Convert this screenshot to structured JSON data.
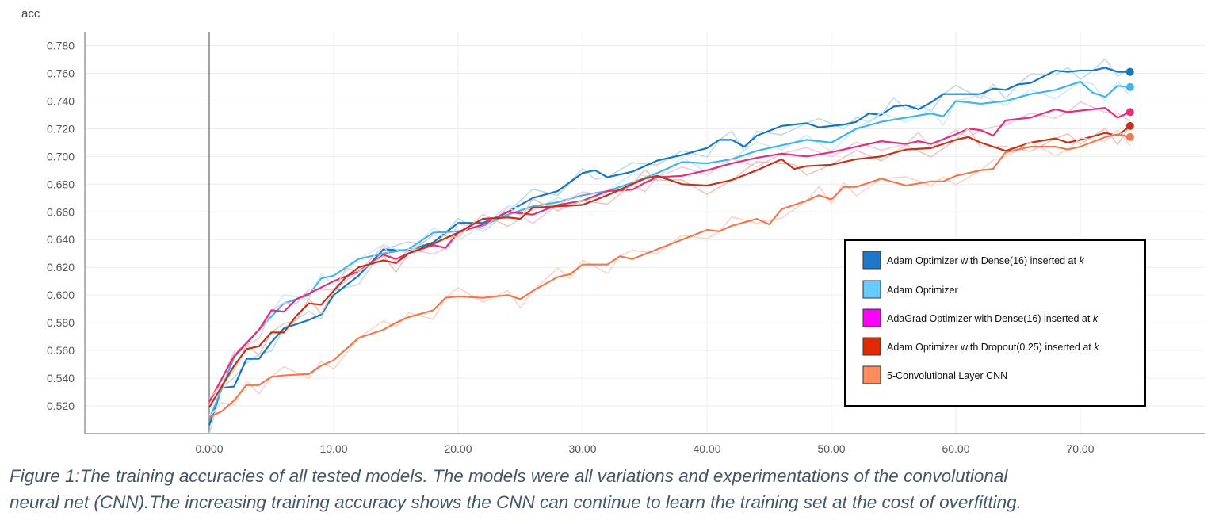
{
  "chart_data": {
    "type": "line",
    "ylabel": "acc",
    "xlim": [
      -10,
      80
    ],
    "ylim": [
      0.5,
      0.79
    ],
    "x_ticks": [
      "0.000",
      "10.00",
      "20.00",
      "30.00",
      "40.00",
      "50.00",
      "60.00",
      "70.00"
    ],
    "y_ticks": [
      "0.520",
      "0.540",
      "0.560",
      "0.580",
      "0.600",
      "0.620",
      "0.640",
      "0.660",
      "0.680",
      "0.700",
      "0.720",
      "0.740",
      "0.760",
      "0.780"
    ],
    "legend_position": "bottom-right",
    "legend": [
      {
        "label": "Adam Optimizer with Dense(16) inserted at ",
        "k": "k",
        "color": "#1f77c9"
      },
      {
        "label": "Adam Optimizer",
        "k": "",
        "color": "#66ccff"
      },
      {
        "label": "AdaGrad Optimizer with Dense(16) inserted at ",
        "k": "k",
        "color": "#ff00ff"
      },
      {
        "label": "Adam Optimizer with Dropout(0.25) inserted at ",
        "k": "k",
        "color": "#e02b00"
      },
      {
        "label": "5-Convolutional Layer CNN",
        "k": "",
        "color": "#ff8c5a"
      }
    ],
    "series": [
      {
        "color": "#1676c0",
        "light": "#b9d8ee",
        "points": [
          [
            0,
            0.506
          ],
          [
            1,
            0.533
          ],
          [
            2,
            0.534
          ],
          [
            3,
            0.554
          ],
          [
            4,
            0.554
          ],
          [
            5,
            0.566
          ],
          [
            6,
            0.576
          ],
          [
            8,
            0.582
          ],
          [
            9,
            0.586
          ],
          [
            10,
            0.6
          ],
          [
            12,
            0.614
          ],
          [
            14,
            0.633
          ],
          [
            16,
            0.632
          ],
          [
            18,
            0.638
          ],
          [
            20,
            0.652
          ],
          [
            22,
            0.652
          ],
          [
            24,
            0.66
          ],
          [
            26,
            0.67
          ],
          [
            28,
            0.675
          ],
          [
            30,
            0.688
          ],
          [
            31,
            0.69
          ],
          [
            32,
            0.685
          ],
          [
            34,
            0.689
          ],
          [
            36,
            0.697
          ],
          [
            38,
            0.701
          ],
          [
            40,
            0.706
          ],
          [
            41,
            0.712
          ],
          [
            42,
            0.712
          ],
          [
            43,
            0.707
          ],
          [
            44,
            0.715
          ],
          [
            46,
            0.722
          ],
          [
            48,
            0.724
          ],
          [
            49,
            0.721
          ],
          [
            51,
            0.723
          ],
          [
            52,
            0.725
          ],
          [
            53,
            0.731
          ],
          [
            54,
            0.73
          ],
          [
            55,
            0.736
          ],
          [
            56,
            0.737
          ],
          [
            57,
            0.734
          ],
          [
            58,
            0.739
          ],
          [
            59,
            0.745
          ],
          [
            60,
            0.745
          ],
          [
            62,
            0.745
          ],
          [
            63,
            0.749
          ],
          [
            64,
            0.748
          ],
          [
            65,
            0.752
          ],
          [
            66,
            0.753
          ],
          [
            68,
            0.762
          ],
          [
            69,
            0.761
          ],
          [
            70,
            0.762
          ],
          [
            71,
            0.762
          ],
          [
            72,
            0.764
          ],
          [
            73,
            0.761
          ],
          [
            74,
            0.761
          ]
        ]
      },
      {
        "color": "#45b3ea",
        "light": "#c9ecfa",
        "points": [
          [
            0,
            0.51
          ],
          [
            2,
            0.555
          ],
          [
            4,
            0.575
          ],
          [
            6,
            0.594
          ],
          [
            8,
            0.6
          ],
          [
            9,
            0.612
          ],
          [
            10,
            0.614
          ],
          [
            12,
            0.626
          ],
          [
            14,
            0.63
          ],
          [
            16,
            0.633
          ],
          [
            18,
            0.645
          ],
          [
            20,
            0.646
          ],
          [
            22,
            0.65
          ],
          [
            24,
            0.658
          ],
          [
            26,
            0.664
          ],
          [
            28,
            0.667
          ],
          [
            30,
            0.672
          ],
          [
            32,
            0.675
          ],
          [
            34,
            0.681
          ],
          [
            36,
            0.688
          ],
          [
            38,
            0.696
          ],
          [
            40,
            0.695
          ],
          [
            42,
            0.698
          ],
          [
            44,
            0.704
          ],
          [
            46,
            0.708
          ],
          [
            48,
            0.712
          ],
          [
            50,
            0.71
          ],
          [
            52,
            0.72
          ],
          [
            54,
            0.725
          ],
          [
            56,
            0.728
          ],
          [
            58,
            0.731
          ],
          [
            59,
            0.729
          ],
          [
            60,
            0.74
          ],
          [
            62,
            0.738
          ],
          [
            64,
            0.74
          ],
          [
            66,
            0.745
          ],
          [
            68,
            0.748
          ],
          [
            70,
            0.754
          ],
          [
            71,
            0.746
          ],
          [
            72,
            0.743
          ],
          [
            73,
            0.751
          ],
          [
            74,
            0.75
          ]
        ]
      },
      {
        "color": "#e62e7c",
        "light": "#f7c4da",
        "points": [
          [
            0,
            0.523
          ],
          [
            2,
            0.556
          ],
          [
            4,
            0.575
          ],
          [
            5,
            0.589
          ],
          [
            6,
            0.588
          ],
          [
            7,
            0.597
          ],
          [
            8,
            0.601
          ],
          [
            10,
            0.61
          ],
          [
            12,
            0.617
          ],
          [
            14,
            0.629
          ],
          [
            15,
            0.626
          ],
          [
            16,
            0.63
          ],
          [
            18,
            0.636
          ],
          [
            19,
            0.634
          ],
          [
            20,
            0.645
          ],
          [
            22,
            0.651
          ],
          [
            24,
            0.66
          ],
          [
            26,
            0.658
          ],
          [
            28,
            0.665
          ],
          [
            30,
            0.668
          ],
          [
            32,
            0.675
          ],
          [
            34,
            0.676
          ],
          [
            35,
            0.681
          ],
          [
            36,
            0.685
          ],
          [
            38,
            0.686
          ],
          [
            40,
            0.69
          ],
          [
            42,
            0.695
          ],
          [
            44,
            0.699
          ],
          [
            46,
            0.702
          ],
          [
            48,
            0.7
          ],
          [
            50,
            0.703
          ],
          [
            52,
            0.707
          ],
          [
            54,
            0.711
          ],
          [
            56,
            0.709
          ],
          [
            57,
            0.711
          ],
          [
            58,
            0.709
          ],
          [
            60,
            0.716
          ],
          [
            61,
            0.72
          ],
          [
            62,
            0.719
          ],
          [
            63,
            0.715
          ],
          [
            64,
            0.726
          ],
          [
            66,
            0.728
          ],
          [
            68,
            0.734
          ],
          [
            69,
            0.732
          ],
          [
            70,
            0.733
          ],
          [
            72,
            0.735
          ],
          [
            73,
            0.728
          ],
          [
            74,
            0.732
          ]
        ]
      },
      {
        "color": "#c3331a",
        "light": "#efc1b6",
        "points": [
          [
            0,
            0.519
          ],
          [
            2,
            0.549
          ],
          [
            3,
            0.561
          ],
          [
            4,
            0.563
          ],
          [
            5,
            0.573
          ],
          [
            6,
            0.573
          ],
          [
            7,
            0.585
          ],
          [
            8,
            0.594
          ],
          [
            9,
            0.593
          ],
          [
            10,
            0.603
          ],
          [
            11,
            0.613
          ],
          [
            12,
            0.62
          ],
          [
            14,
            0.625
          ],
          [
            15,
            0.623
          ],
          [
            16,
            0.63
          ],
          [
            18,
            0.637
          ],
          [
            20,
            0.645
          ],
          [
            22,
            0.655
          ],
          [
            24,
            0.656
          ],
          [
            25,
            0.655
          ],
          [
            26,
            0.663
          ],
          [
            28,
            0.664
          ],
          [
            30,
            0.665
          ],
          [
            32,
            0.672
          ],
          [
            34,
            0.68
          ],
          [
            35,
            0.684
          ],
          [
            36,
            0.686
          ],
          [
            38,
            0.68
          ],
          [
            40,
            0.679
          ],
          [
            42,
            0.683
          ],
          [
            44,
            0.69
          ],
          [
            46,
            0.698
          ],
          [
            47,
            0.691
          ],
          [
            48,
            0.693
          ],
          [
            50,
            0.694
          ],
          [
            52,
            0.698
          ],
          [
            54,
            0.7
          ],
          [
            56,
            0.705
          ],
          [
            58,
            0.706
          ],
          [
            60,
            0.712
          ],
          [
            61,
            0.714
          ],
          [
            62,
            0.71
          ],
          [
            64,
            0.704
          ],
          [
            66,
            0.71
          ],
          [
            68,
            0.713
          ],
          [
            69,
            0.71
          ],
          [
            70,
            0.712
          ],
          [
            72,
            0.717
          ],
          [
            73,
            0.715
          ],
          [
            74,
            0.722
          ]
        ]
      },
      {
        "color": "#f0794f",
        "light": "#fbd2c2",
        "points": [
          [
            0,
            0.512
          ],
          [
            1,
            0.516
          ],
          [
            2,
            0.524
          ],
          [
            3,
            0.535
          ],
          [
            4,
            0.535
          ],
          [
            5,
            0.541
          ],
          [
            6,
            0.542
          ],
          [
            8,
            0.543
          ],
          [
            9,
            0.549
          ],
          [
            10,
            0.553
          ],
          [
            12,
            0.569
          ],
          [
            14,
            0.575
          ],
          [
            15,
            0.58
          ],
          [
            16,
            0.584
          ],
          [
            18,
            0.589
          ],
          [
            19,
            0.598
          ],
          [
            20,
            0.599
          ],
          [
            22,
            0.598
          ],
          [
            24,
            0.6
          ],
          [
            25,
            0.597
          ],
          [
            26,
            0.603
          ],
          [
            28,
            0.613
          ],
          [
            29,
            0.615
          ],
          [
            30,
            0.622
          ],
          [
            32,
            0.622
          ],
          [
            33,
            0.628
          ],
          [
            34,
            0.626
          ],
          [
            36,
            0.633
          ],
          [
            38,
            0.64
          ],
          [
            40,
            0.647
          ],
          [
            41,
            0.646
          ],
          [
            42,
            0.65
          ],
          [
            44,
            0.655
          ],
          [
            45,
            0.651
          ],
          [
            46,
            0.662
          ],
          [
            48,
            0.668
          ],
          [
            49,
            0.672
          ],
          [
            50,
            0.669
          ],
          [
            51,
            0.678
          ],
          [
            52,
            0.678
          ],
          [
            54,
            0.684
          ],
          [
            56,
            0.679
          ],
          [
            58,
            0.682
          ],
          [
            59,
            0.682
          ],
          [
            60,
            0.686
          ],
          [
            62,
            0.69
          ],
          [
            63,
            0.691
          ],
          [
            64,
            0.703
          ],
          [
            66,
            0.707
          ],
          [
            68,
            0.707
          ],
          [
            69,
            0.705
          ],
          [
            70,
            0.707
          ],
          [
            72,
            0.714
          ],
          [
            73,
            0.716
          ],
          [
            74,
            0.714
          ]
        ]
      }
    ]
  },
  "caption": {
    "line1": "Figure 1:The training accuracies of all tested models. The models were all variations and experimentations of the convolutional",
    "line2": "neural net (CNN).The increasing training accuracy shows the CNN can continue to learn the training set at the cost of overfitting."
  }
}
